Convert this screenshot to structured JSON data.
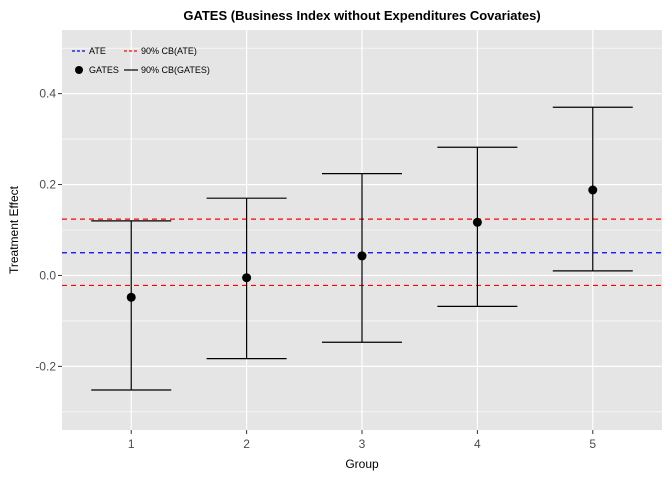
{
  "chart_data": {
    "type": "scatter",
    "title": "GATES (Business Index without Expenditures Covariates)",
    "xlabel": "Group",
    "ylabel": "Treatment Effect",
    "x": [
      1,
      2,
      3,
      4,
      5
    ],
    "x_ticks": [
      "1",
      "2",
      "3",
      "4",
      "5"
    ],
    "y_ticks": [
      "-0.2",
      "0.0",
      "0.2",
      "0.4"
    ],
    "xlim": [
      0.4,
      5.6
    ],
    "ylim": [
      -0.34,
      0.54
    ],
    "grid": true,
    "series": [
      {
        "name": "GATES",
        "values": [
          -0.048,
          -0.005,
          0.043,
          0.117,
          0.188
        ]
      },
      {
        "name": "90% CB(GATES)",
        "lower": [
          -0.252,
          -0.183,
          -0.147,
          -0.068,
          0.01
        ],
        "upper": [
          0.12,
          0.17,
          0.224,
          0.282,
          0.37
        ]
      }
    ],
    "reference_lines": [
      {
        "name": "ATE",
        "value": 0.05,
        "color": "#0000ff",
        "style": "dashed"
      },
      {
        "name": "90% CB(ATE)",
        "value": 0.124,
        "color": "#ff0000",
        "style": "dashed"
      },
      {
        "name": "90% CB(ATE)",
        "value": -0.022,
        "color": "#ff0000",
        "style": "dashed"
      }
    ],
    "legend": {
      "placement": "top-left",
      "entries": [
        {
          "label": "ATE",
          "symbol": "dashed-line",
          "color": "#0000ff"
        },
        {
          "label": "90% CB(ATE)",
          "symbol": "dashed-line",
          "color": "#ff0000"
        },
        {
          "label": "GATES",
          "symbol": "dot",
          "color": "#000000"
        },
        {
          "label": "90% CB(GATES)",
          "symbol": "solid-line",
          "color": "#000000"
        }
      ]
    },
    "colors": {
      "panel": "#e5e5e5",
      "grid": "#ffffff",
      "points": "#000000"
    }
  }
}
